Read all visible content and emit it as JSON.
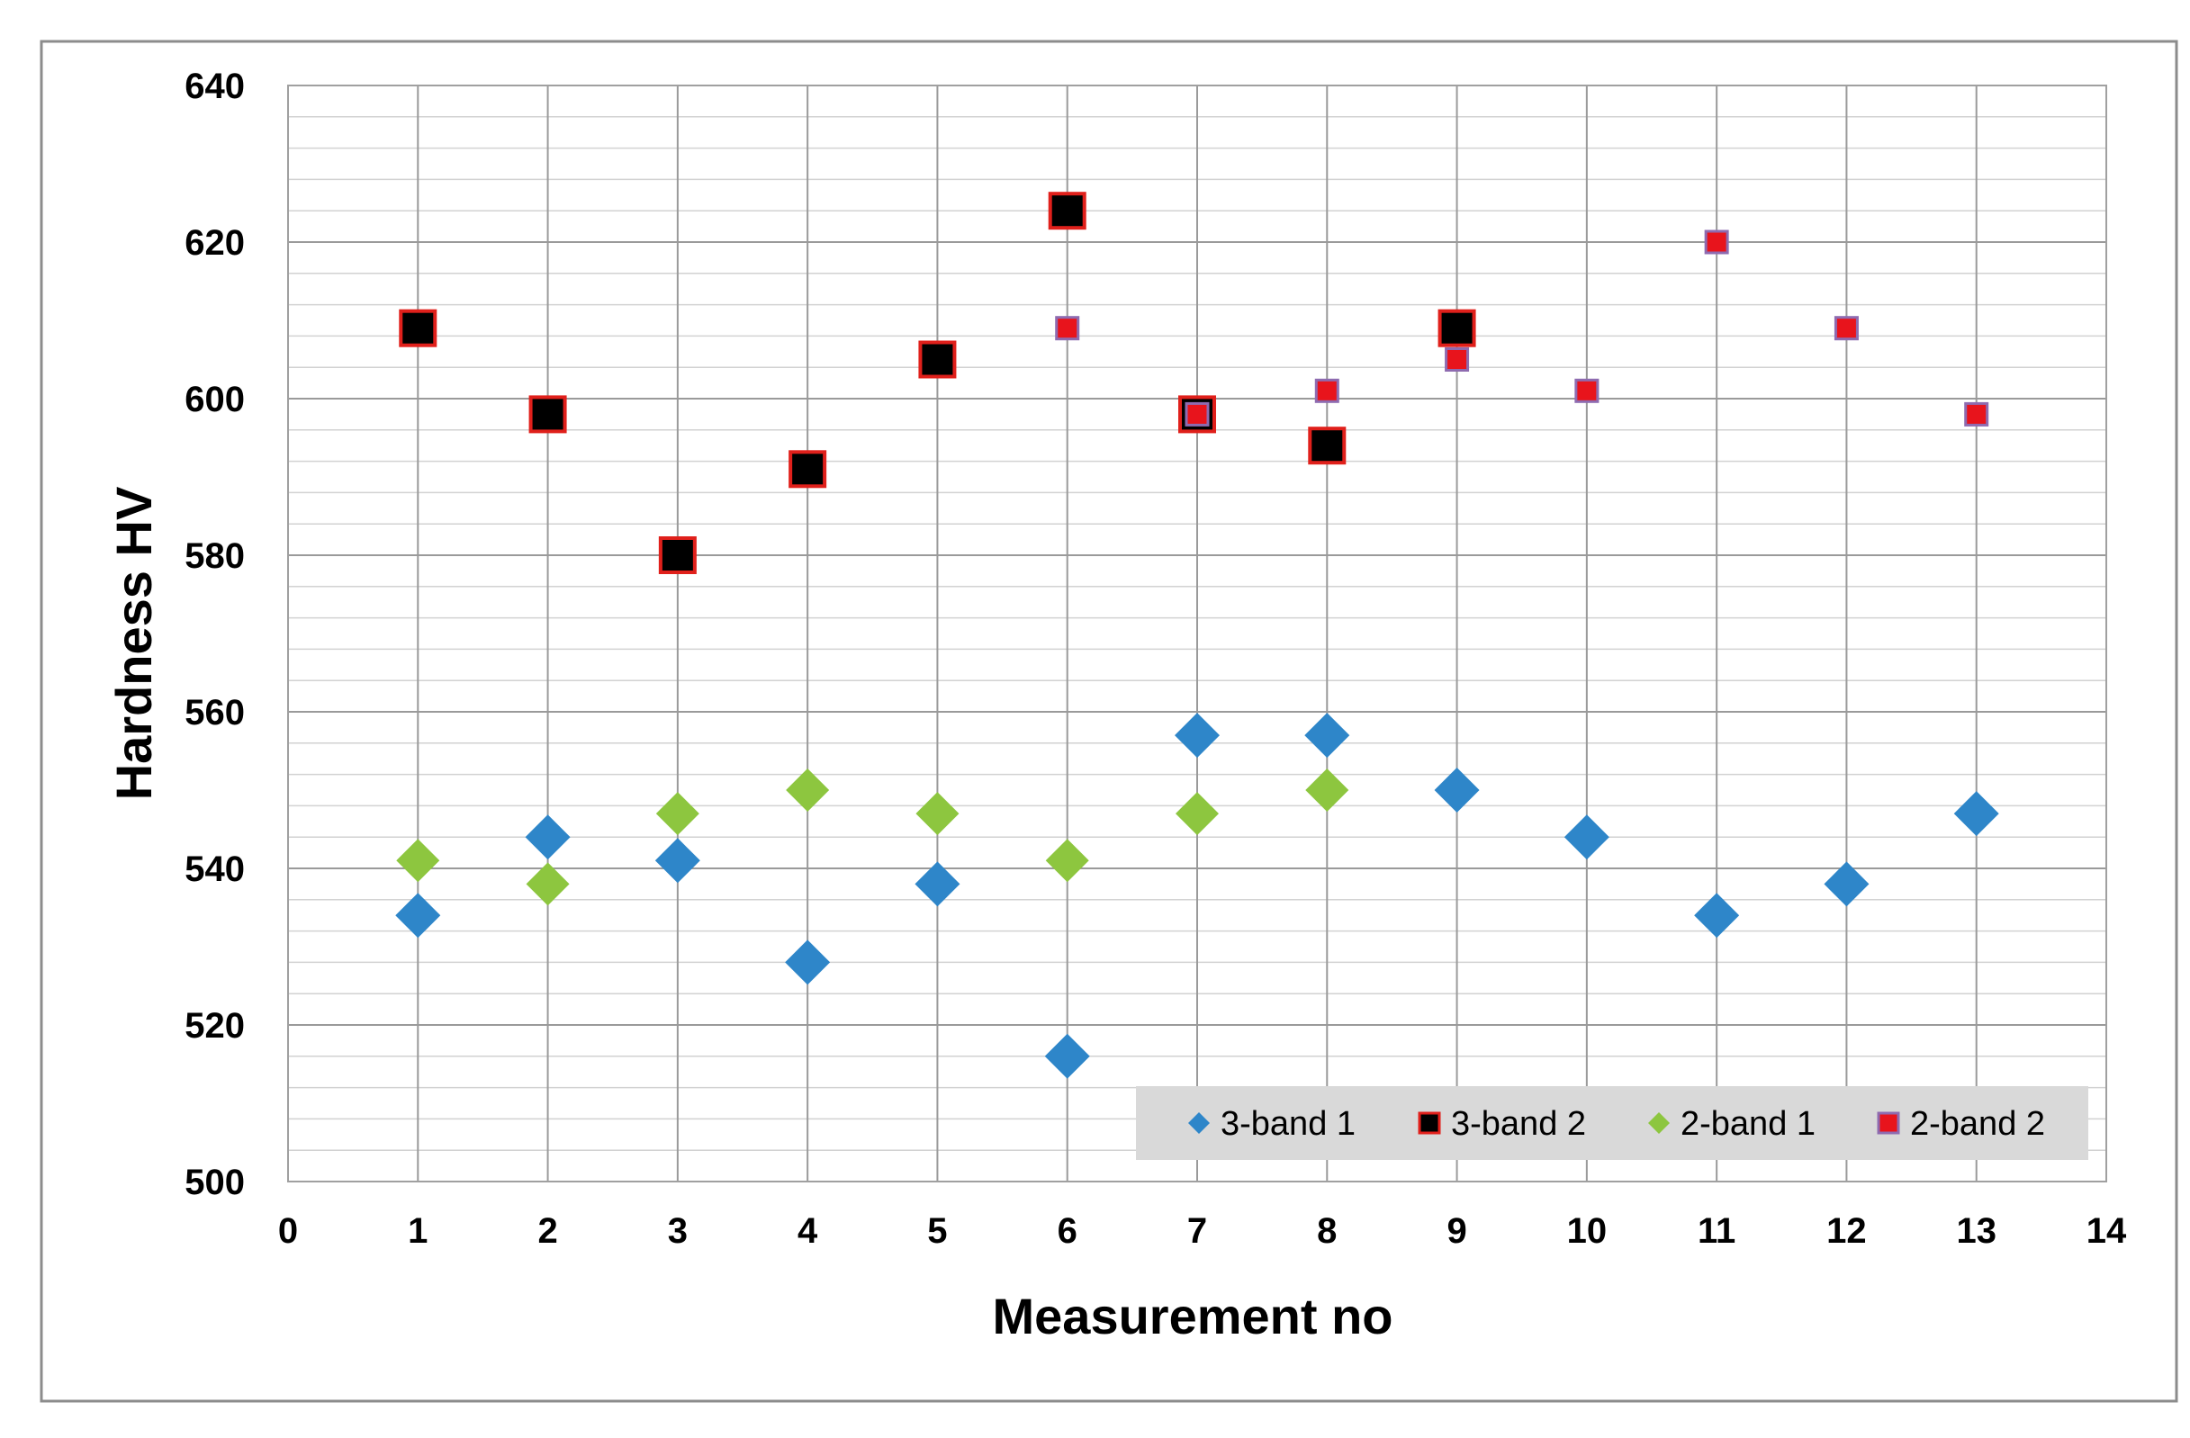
{
  "chart_data": {
    "type": "scatter",
    "title": "",
    "xlabel": "Measurement no",
    "ylabel": "Hardness HV",
    "xlim": [
      0,
      14
    ],
    "ylim": [
      500,
      640
    ],
    "x_ticks": [
      0,
      1,
      2,
      3,
      4,
      5,
      6,
      7,
      8,
      9,
      10,
      11,
      12,
      13,
      14
    ],
    "y_ticks": [
      500,
      520,
      540,
      560,
      580,
      600,
      620,
      640
    ],
    "y_minor_step": 4,
    "grid": true,
    "legend_position": "bottom-right",
    "series": [
      {
        "name": "3-band 1",
        "marker": "diamond",
        "color": "#2E86C9",
        "points": [
          [
            1,
            534
          ],
          [
            2,
            544
          ],
          [
            3,
            541
          ],
          [
            4,
            528
          ],
          [
            5,
            538
          ],
          [
            6,
            516
          ],
          [
            7,
            557
          ],
          [
            8,
            557
          ],
          [
            9,
            550
          ],
          [
            10,
            544
          ],
          [
            11,
            534
          ],
          [
            12,
            538
          ],
          [
            13,
            547
          ]
        ]
      },
      {
        "name": "3-band 2",
        "marker": "square",
        "color": "#000000",
        "edge_color": "#E0201B",
        "points": [
          [
            1,
            609
          ],
          [
            2,
            598
          ],
          [
            3,
            580
          ],
          [
            4,
            591
          ],
          [
            5,
            605
          ],
          [
            6,
            624
          ],
          [
            7,
            598
          ],
          [
            8,
            594
          ],
          [
            9,
            609
          ]
        ]
      },
      {
        "name": "2-band 1",
        "marker": "diamond",
        "color": "#8DC63F",
        "points": [
          [
            1,
            541
          ],
          [
            2,
            538
          ],
          [
            3,
            547
          ],
          [
            4,
            550
          ],
          [
            5,
            547
          ],
          [
            6,
            541
          ],
          [
            7,
            547
          ],
          [
            8,
            550
          ]
        ]
      },
      {
        "name": "2-band 2",
        "marker": "square",
        "color": "#E8141C",
        "edge_color": "#8E6BB0",
        "points": [
          [
            6,
            609
          ],
          [
            7,
            598
          ],
          [
            8,
            601
          ],
          [
            9,
            605
          ],
          [
            10,
            601
          ],
          [
            11,
            620
          ],
          [
            12,
            609
          ],
          [
            13,
            598
          ]
        ]
      }
    ]
  }
}
